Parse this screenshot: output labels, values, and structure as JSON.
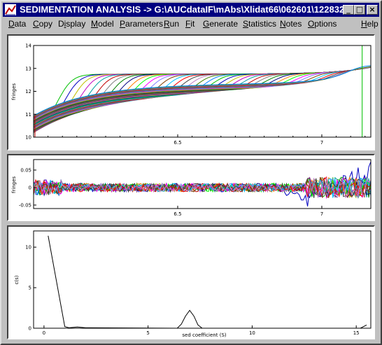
{
  "window": {
    "title": "SEDIMENTATION ANALYSIS -> G:\\AUCdataIF\\mAbs\\Xlidat66\\062601\\122832...",
    "buttons": {
      "minimize": "_",
      "maximize": "□",
      "close": "×"
    },
    "icon": "sedimentation-app-icon"
  },
  "menu": [
    {
      "key": "data",
      "label": "Data"
    },
    {
      "key": "copy",
      "label": "Copy"
    },
    {
      "key": "display",
      "label": "Display"
    },
    {
      "key": "model",
      "label": "Model"
    },
    {
      "key": "parameters",
      "label": "Parameters"
    },
    {
      "key": "run",
      "label": "Run"
    },
    {
      "key": "fit",
      "label": "Fit"
    },
    {
      "key": "generate",
      "label": "Generate"
    },
    {
      "key": "statistics",
      "label": "Statistics"
    },
    {
      "key": "notes",
      "label": "Notes"
    },
    {
      "key": "options",
      "label": "Options"
    },
    {
      "key": "help",
      "label": "Help"
    }
  ],
  "chart_data": [
    {
      "type": "line",
      "ylabel": "fringes",
      "xlim": [
        6.0,
        7.17
      ],
      "ylim": [
        10,
        14
      ],
      "x_ticks": [
        "6.5",
        "7"
      ],
      "y_ticks": [
        "10",
        "11",
        "12",
        "13",
        "14"
      ],
      "series_count": 40,
      "plateau": 12.75,
      "palette": [
        "#00c000",
        "#0000c0",
        "#c0c000",
        "#c000c0",
        "#00a0a0",
        "#c00000",
        "#808080",
        "#008000",
        "#000080",
        "#ff8000",
        "#00ff00",
        "#ff00ff",
        "#8080ff",
        "#804000",
        "#00c0ff",
        "#ff0000",
        "#404040",
        "#c080c0",
        "#408000",
        "#0080ff"
      ]
    },
    {
      "type": "line",
      "ylabel": "fringes",
      "xlim": [
        6.0,
        7.17
      ],
      "ylim": [
        -0.06,
        0.08
      ],
      "x_ticks": [
        "6.5",
        "7"
      ],
      "y_ticks": [
        "0.05",
        "0",
        "-0.05"
      ]
    },
    {
      "type": "line",
      "title": "",
      "xlabel": "sed coefficient (S)",
      "ylabel": "c(s)",
      "xlim": [
        -0.5,
        15.7
      ],
      "ylim": [
        0,
        12
      ],
      "x_ticks": [
        "0",
        "5",
        "10",
        "15"
      ],
      "y_ticks": [
        "0",
        "5",
        "10"
      ],
      "series": [
        {
          "values": [
            [
              0.2,
              11.4
            ],
            [
              1.0,
              0.2
            ],
            [
              1.2,
              0.05
            ],
            [
              1.6,
              0.15
            ],
            [
              2.0,
              0.05
            ],
            [
              6.4,
              0.0
            ],
            [
              6.6,
              0.5
            ],
            [
              6.8,
              1.5
            ],
            [
              7.0,
              2.2
            ],
            [
              7.2,
              1.5
            ],
            [
              7.4,
              0.4
            ],
            [
              7.6,
              0.0
            ],
            [
              15.2,
              0.0
            ],
            [
              15.5,
              0.4
            ]
          ]
        }
      ]
    }
  ]
}
